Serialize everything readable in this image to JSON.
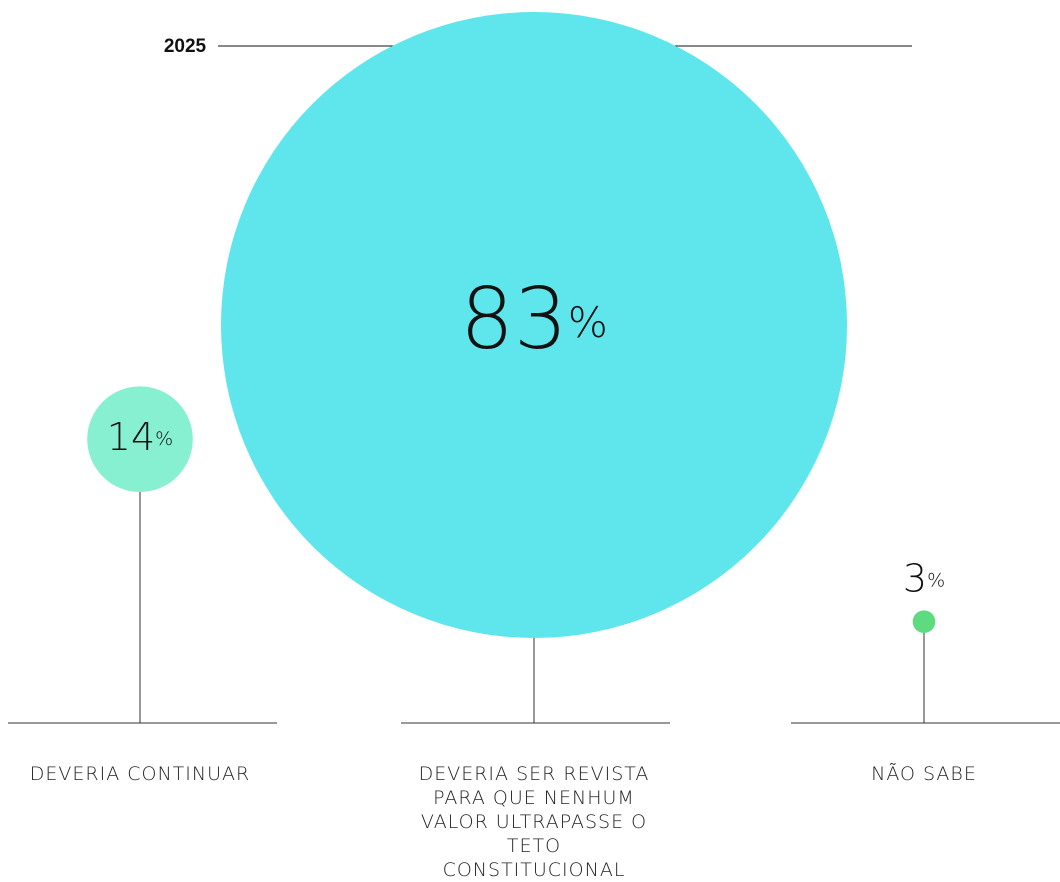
{
  "chart_data": {
    "type": "bubble",
    "title": "2025",
    "categories": [
      "DEVERIA CONTINUAR",
      "DEVERIA SER REVISTA PARA QUE NENHUM VALOR ULTRAPASSE O TETO CONSTITUCIONAL",
      "NÃO SABE"
    ],
    "values": [
      14,
      83,
      3
    ],
    "value_labels": [
      "14%",
      "83%",
      "3%"
    ],
    "colors": [
      "#87f0d0",
      "#5ee6ec",
      "#5ddb7e"
    ]
  }
}
